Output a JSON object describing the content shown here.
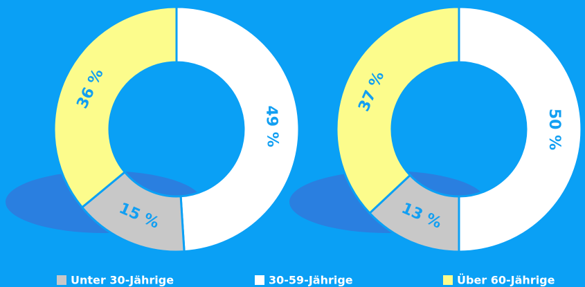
{
  "chart_data": [
    {
      "type": "pie",
      "categories": [
        "Unter 30-Jährige",
        "30-59-Jährige",
        "Über 60-Jährige"
      ],
      "values": [
        15,
        49,
        36
      ],
      "value_labels": [
        "15 %",
        "49 %",
        "36 %"
      ],
      "colors": [
        "#c8c8c8",
        "#ffffff",
        "#fcfc8c"
      ]
    },
    {
      "type": "pie",
      "categories": [
        "Unter 30-Jährige",
        "30-59-Jährige",
        "Über 60-Jährige"
      ],
      "values": [
        13,
        50,
        37
      ],
      "value_labels": [
        "13 %",
        "50 %",
        "37 %"
      ],
      "colors": [
        "#c8c8c8",
        "#ffffff",
        "#fcfc8c"
      ]
    }
  ]
}
